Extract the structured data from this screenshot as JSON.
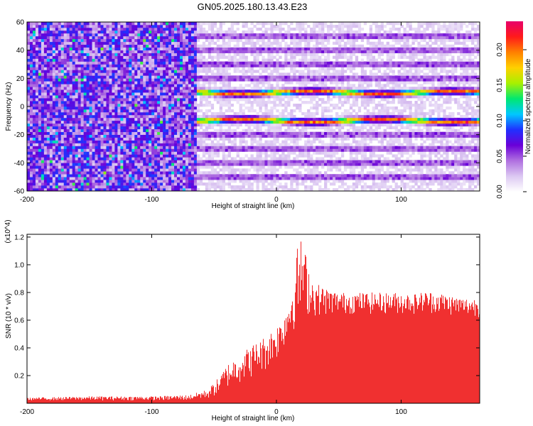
{
  "title": "GN05.2025.180.13.43.E23",
  "chart_data": [
    {
      "type": "heatmap",
      "xlabel": "Height of straight line (km)",
      "ylabel": "Frequency (Hz)",
      "xlim": [
        -200,
        163
      ],
      "ylim": [
        -60,
        60
      ],
      "xticks": [
        -200,
        -100,
        0,
        100
      ],
      "yticks": [
        -60,
        -40,
        -20,
        0,
        20,
        40,
        60
      ],
      "colorbar": {
        "label": "Normalized spectral amplitude",
        "range": [
          0,
          0.24
        ],
        "ticks": [
          "0.00",
          "0.05",
          "0.10",
          "0.15",
          "0.20"
        ],
        "colormap": [
          "#ffffff",
          "#dcc8f2",
          "#b070e0",
          "#6a00d8",
          "#2030ff",
          "#00c8ff",
          "#00e870",
          "#a8f000",
          "#ffd000",
          "#ff8000",
          "#ff1a1a",
          "#e8006a"
        ]
      },
      "regions": [
        {
          "x": [
            -200,
            -65
          ],
          "description_value": "broadband noise, amplitude 0.02-0.12"
        },
        {
          "x": [
            -65,
            163
          ],
          "description_value": "harmonic lines"
        }
      ],
      "dominant_lines_hz": [
        10,
        -10
      ],
      "dominant_line_amplitude": 0.2,
      "harmonic_lines_hz": [
        -50,
        -40,
        -30,
        -20,
        20,
        30,
        40,
        50
      ],
      "harmonic_line_amplitude": 0.06,
      "grid": false
    },
    {
      "type": "area",
      "xlabel": "Height of straight line (km)",
      "ylabel": "SNR (10 * v/v)",
      "y_multiplier": "(x10^4)",
      "xlim": [
        -200,
        163
      ],
      "ylim": [
        0,
        1.22
      ],
      "xticks": [
        -200,
        -100,
        0,
        100
      ],
      "yticks": [
        0.2,
        0.4,
        0.6,
        0.8,
        1.0,
        1.2
      ],
      "color": "#f03030",
      "x": [
        -200,
        -150,
        -100,
        -70,
        -55,
        -45,
        -40,
        -30,
        -20,
        -10,
        0,
        5,
        10,
        14,
        18,
        22,
        26,
        30,
        40,
        50,
        60,
        70,
        80,
        90,
        100,
        110,
        120,
        130,
        140,
        150,
        163
      ],
      "envelope": [
        0.04,
        0.05,
        0.05,
        0.06,
        0.1,
        0.2,
        0.28,
        0.35,
        0.42,
        0.48,
        0.56,
        0.62,
        0.75,
        0.92,
        1.22,
        1.15,
        0.98,
        0.88,
        0.83,
        0.8,
        0.8,
        0.8,
        0.8,
        0.8,
        0.8,
        0.79,
        0.81,
        0.8,
        0.78,
        0.76,
        0.76
      ],
      "baseline": [
        0.02,
        0.02,
        0.02,
        0.02,
        0.03,
        0.06,
        0.1,
        0.14,
        0.18,
        0.22,
        0.3,
        0.38,
        0.45,
        0.52,
        0.5,
        0.6,
        0.62,
        0.62,
        0.63,
        0.64,
        0.64,
        0.64,
        0.64,
        0.64,
        0.64,
        0.64,
        0.65,
        0.64,
        0.63,
        0.62,
        0.62
      ],
      "grid": false
    }
  ],
  "tick_labels": {
    "x": [
      "-200",
      "-100",
      "0",
      "100"
    ],
    "heat_y": [
      "-60",
      "-40",
      "-20",
      "0",
      "20",
      "40",
      "60"
    ],
    "snr_y": [
      "0.2",
      "0.4",
      "0.6",
      "0.8",
      "1.0",
      "1.2"
    ],
    "cbar": [
      "0.00",
      "0.05",
      "0.10",
      "0.15",
      "0.20"
    ]
  }
}
